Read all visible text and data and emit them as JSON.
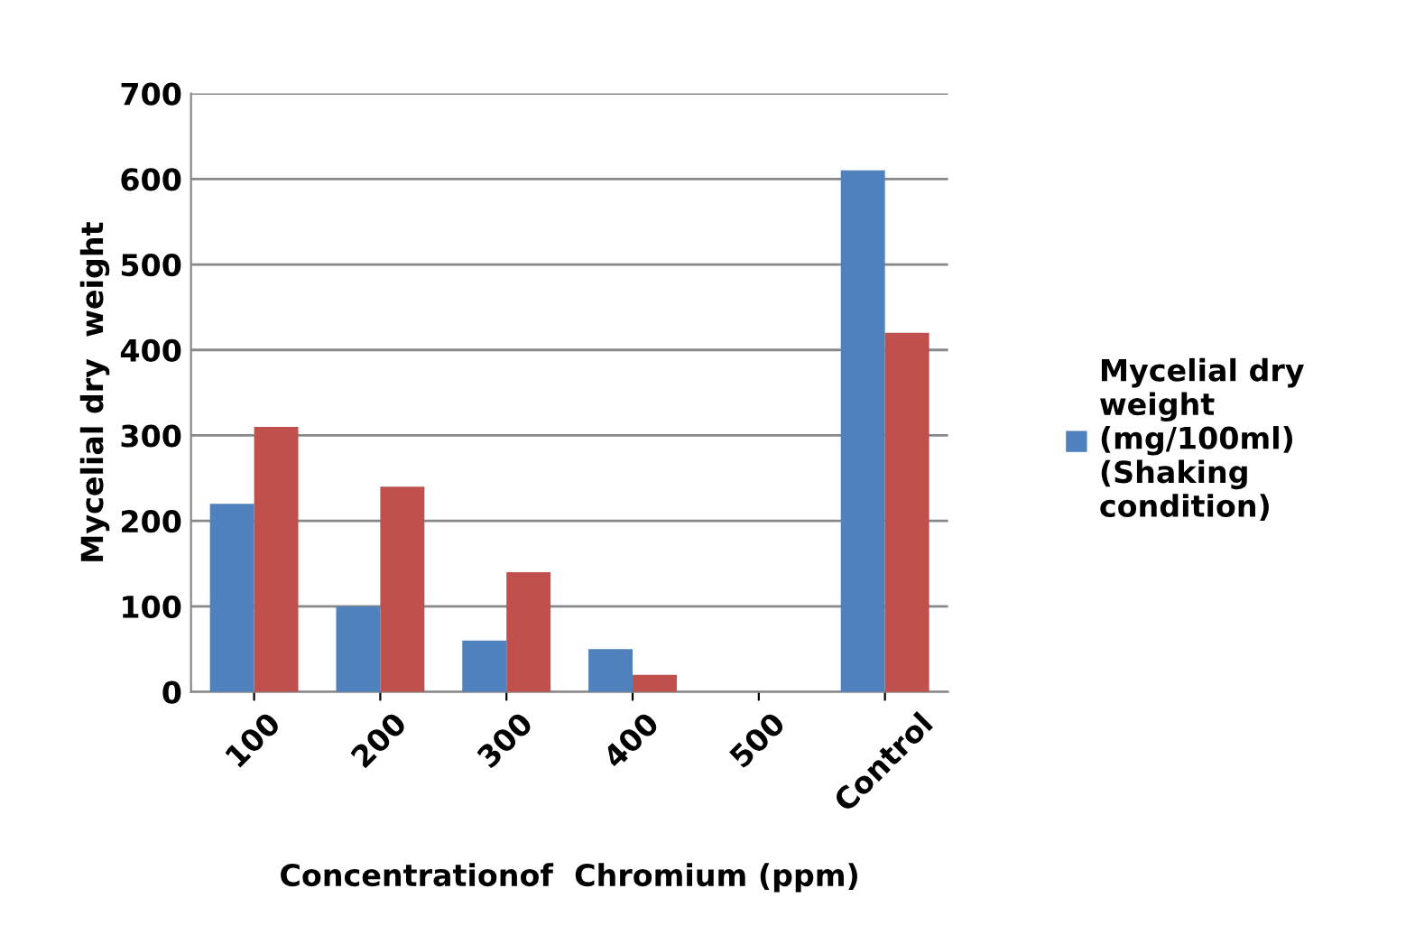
{
  "chart_data": {
    "type": "bar",
    "xlabel": "Concentrationof  Chromium (ppm)",
    "ylabel": "Mycelial dry  weight",
    "categories": [
      "100",
      "200",
      "300",
      "400",
      "500",
      "Control"
    ],
    "series": [
      {
        "name": "Mycelial dry\nweight\n(mg/100ml)\n(Shaking\ncondition)",
        "color": "#4f81bd",
        "values": [
          220,
          100,
          60,
          50,
          null,
          610
        ]
      },
      {
        "color": "#c0504d",
        "values": [
          310,
          240,
          140,
          20,
          null,
          420
        ]
      }
    ],
    "ylim": [
      0,
      700
    ],
    "yticks": [
      0,
      100,
      200,
      300,
      400,
      500,
      600,
      700
    ],
    "grid": "y",
    "legend": "right"
  }
}
